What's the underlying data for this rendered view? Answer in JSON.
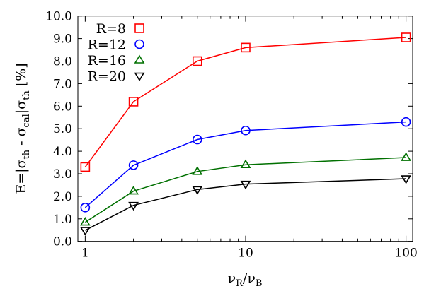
{
  "chart_data": {
    "type": "line",
    "xlabel": {
      "main": "ν",
      "sub1": "R",
      "sep": "/ν",
      "sub2": "B"
    },
    "ylabel": {
      "p1": "E=|σ",
      "s1": "th",
      "p2": " - σ",
      "s2": "cal",
      "p3": "|σ",
      "s3": "th",
      "p4": " [%]"
    },
    "x_scale": "log",
    "xlim": [
      0.9,
      110
    ],
    "ylim": [
      0,
      10
    ],
    "x_ticks": [
      1,
      10,
      100
    ],
    "x_tick_labels": [
      "1",
      "10",
      "100"
    ],
    "y_ticks": [
      0,
      1,
      2,
      3,
      4,
      5,
      6,
      7,
      8,
      9,
      10
    ],
    "y_tick_labels": [
      "0.0",
      "1.0",
      "2.0",
      "3.0",
      "4.0",
      "5.0",
      "6.0",
      "7.0",
      "8.0",
      "9.0",
      "10.0"
    ],
    "grid": false,
    "legend_placement": "top-left",
    "x": [
      1,
      2,
      5,
      10,
      100
    ],
    "series": [
      {
        "name": "R=8",
        "color": "#ff0000",
        "marker": "square",
        "values": [
          3.3,
          6.2,
          8.0,
          8.6,
          9.05
        ]
      },
      {
        "name": "R=12",
        "color": "#0000ff",
        "marker": "circle",
        "values": [
          1.5,
          3.38,
          4.52,
          4.92,
          5.3
        ]
      },
      {
        "name": "R=16",
        "color": "#007000",
        "marker": "triangle-up",
        "values": [
          0.85,
          2.23,
          3.1,
          3.4,
          3.72
        ]
      },
      {
        "name": "R=20",
        "color": "#000000",
        "marker": "triangle-down",
        "values": [
          0.49,
          1.6,
          2.3,
          2.54,
          2.78
        ]
      }
    ]
  }
}
